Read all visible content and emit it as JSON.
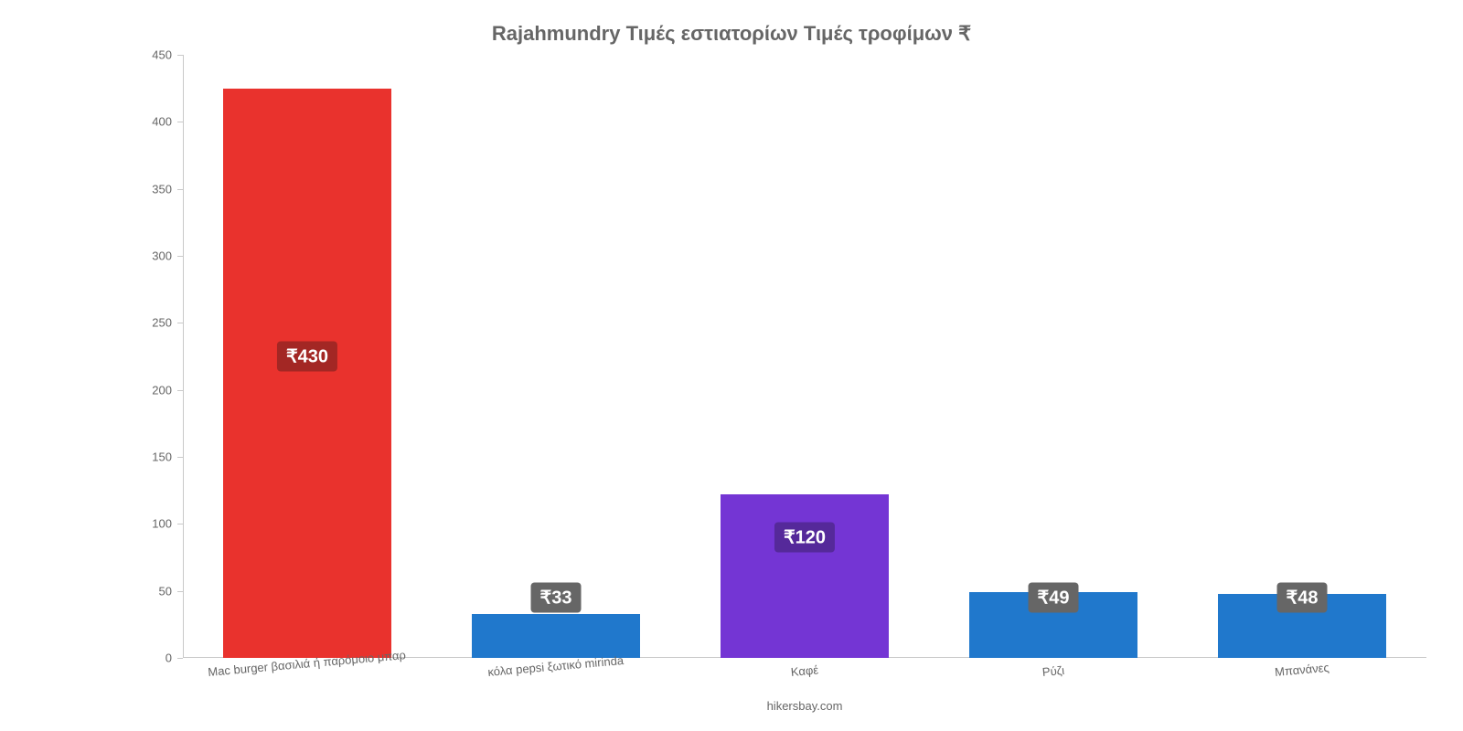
{
  "chart": {
    "type": "bar",
    "title": "Rajahmundry Τιμές εστιατορίων Τιμές τροφίμων ₹",
    "title_fontsize": 22,
    "title_color": "#666666",
    "background_color": "#ffffff",
    "axis_color": "#c9c9c9",
    "tick_label_color": "#666666",
    "tick_label_fontsize": 13,
    "xtick_rotation_deg": -5,
    "attribution": "hikersbay.com",
    "attribution_fontsize": 13,
    "ylim": [
      0,
      450
    ],
    "ytick_step": 50,
    "yticks": [
      0,
      50,
      100,
      150,
      200,
      250,
      300,
      350,
      400,
      450
    ],
    "bar_width_ratio": 0.68,
    "value_label_fontsize": 20,
    "value_label_text_color": "#ffffff",
    "categories": [
      {
        "label": "Mac burger βασιλιά ή παρόμοιο μπαρ",
        "value": 425,
        "display": "₹430",
        "bar_color": "#e9322d",
        "value_bg_color": "#a32724"
      },
      {
        "label": "κόλα pepsi ξωτικό mirinda",
        "value": 33,
        "display": "₹33",
        "bar_color": "#2078cc",
        "value_bg_color": "#666666"
      },
      {
        "label": "Καφέ",
        "value": 122,
        "display": "₹120",
        "bar_color": "#7435d4",
        "value_bg_color": "#55299a"
      },
      {
        "label": "Ρύζι",
        "value": 49,
        "display": "₹49",
        "bar_color": "#2078cc",
        "value_bg_color": "#666666"
      },
      {
        "label": "Μπανάνες",
        "value": 48,
        "display": "₹48",
        "bar_color": "#2078cc",
        "value_bg_color": "#666666"
      }
    ]
  }
}
